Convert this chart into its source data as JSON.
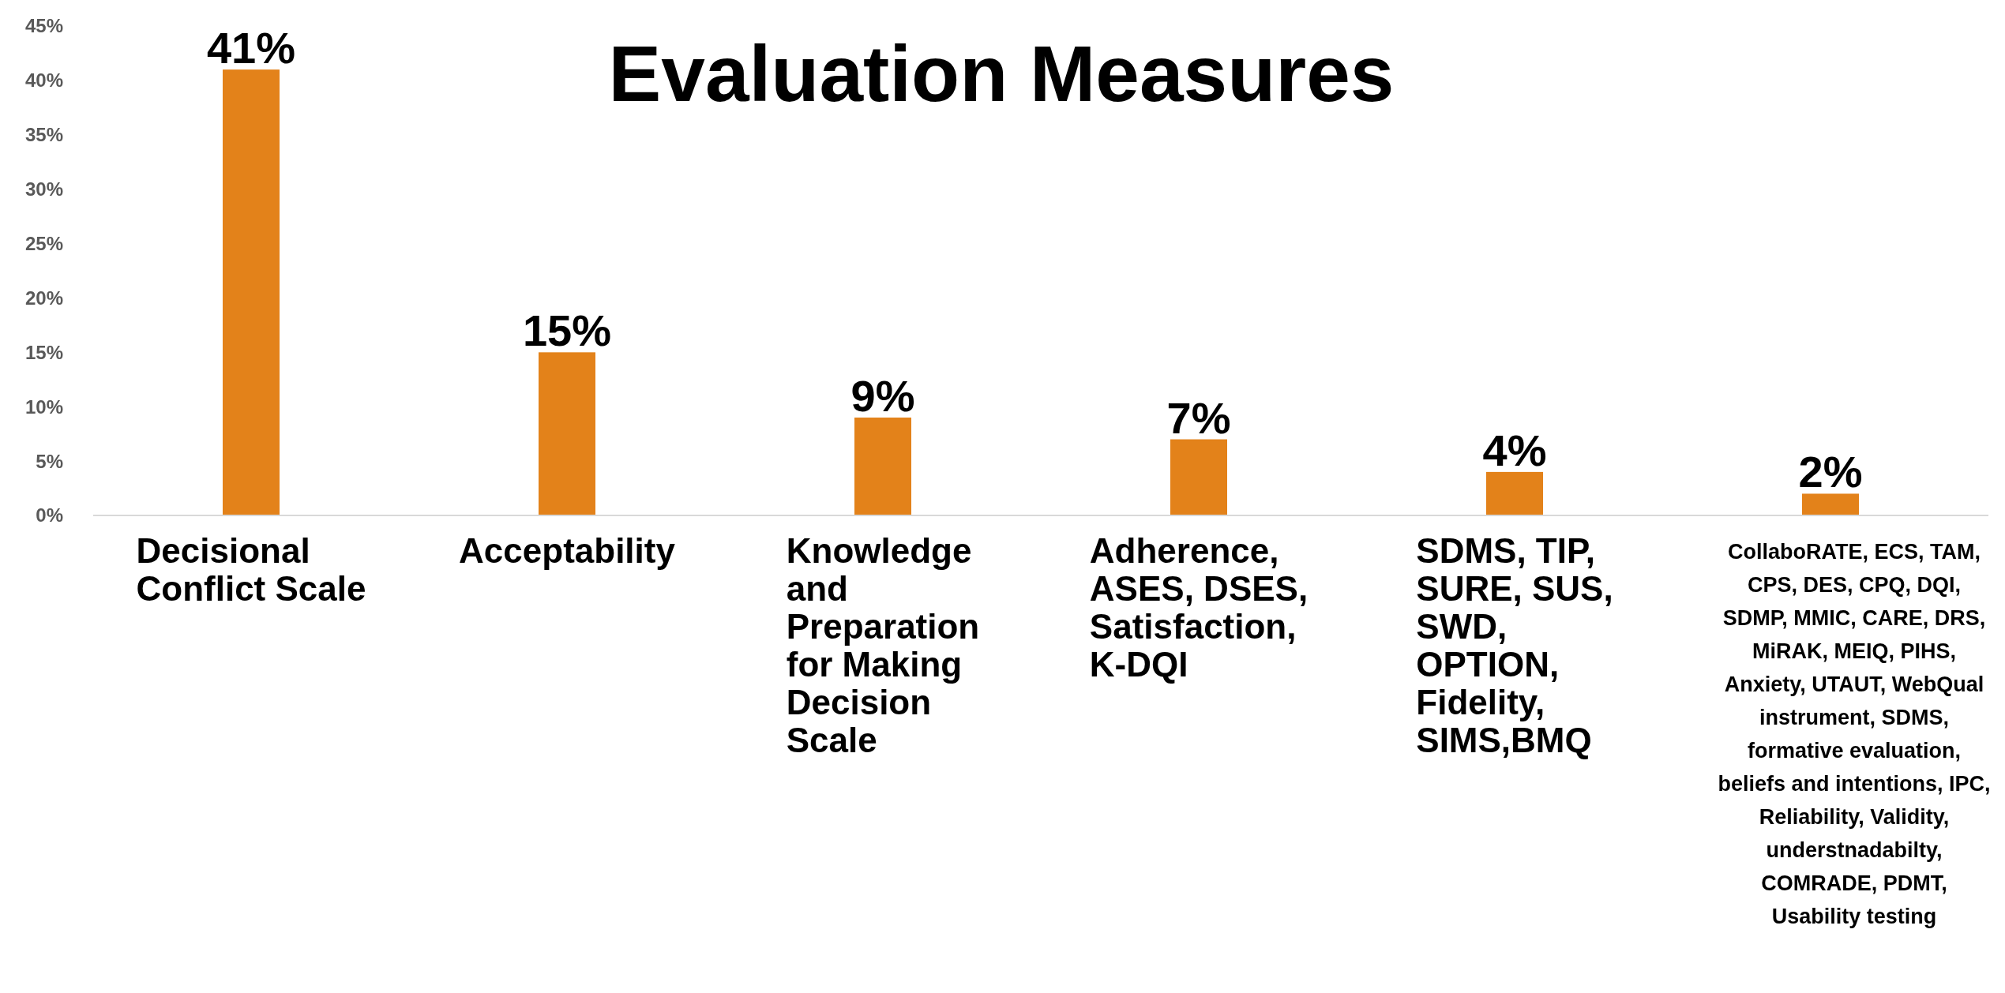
{
  "chart_data": {
    "type": "bar",
    "title": "Evaluation Measures",
    "categories": [
      "Decisional Conflict Scale",
      "Acceptability",
      "Knowledge and Preparation for Making Decision Scale",
      "Adherence, ASES, DSES, Satisfaction, K-DQI",
      "SDMS, TIP, SURE, SUS, SWD, OPTION, Fidelity, SIMS,BMQ",
      "CollaboRATE, ECS, TAM, CPS, DES, CPQ, DQI, SDMP, MMIC, CARE, DRS, MiRAK, MEIQ, PIHS, Anxiety, UTAUT, WebQual instrument, SDMS, formative evaluation, beliefs and intentions, IPC, Reliability, Validity, understnadabilty, COMRADE, PDMT, Usability testing"
    ],
    "values": [
      41,
      15,
      9,
      7,
      4,
      2
    ],
    "value_labels": [
      "41%",
      "15%",
      "9%",
      "7%",
      "4%",
      "2%"
    ],
    "color": "#e3821a",
    "ylim": [
      0,
      45
    ],
    "yticks": [
      {
        "value": 0,
        "label": "0%"
      },
      {
        "value": 5,
        "label": "5%"
      },
      {
        "value": 10,
        "label": "10%"
      },
      {
        "value": 15,
        "label": "15%"
      },
      {
        "value": 20,
        "label": "20%"
      },
      {
        "value": 25,
        "label": "25%"
      },
      {
        "value": 30,
        "label": "30%"
      },
      {
        "value": 35,
        "label": "35%"
      },
      {
        "value": 40,
        "label": "40%"
      },
      {
        "value": 45,
        "label": "45%"
      }
    ],
    "grid": false
  }
}
